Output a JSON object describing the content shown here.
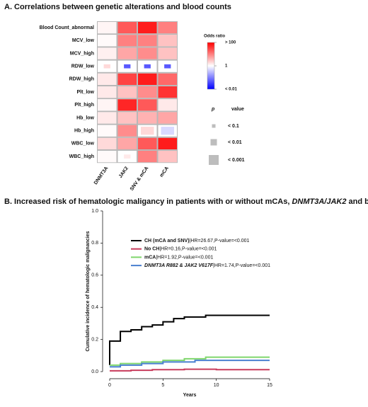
{
  "chart_data": [
    {
      "type": "heatmap",
      "title": "A. Correlations between genetic alterations and blood counts",
      "rows": [
        "Blood Count_abnormal",
        "MCV_low",
        "MCV_high",
        "RDW_low",
        "RDW_high",
        "Plt_low",
        "Plt_high",
        "Hb_low",
        "Hb_high",
        "WBC_low",
        "WBC_high"
      ],
      "columns": [
        "DNMT3A",
        "JAK2",
        "SNV & mCA",
        "mCA"
      ],
      "values": [
        [
          1.2,
          20,
          60,
          10
        ],
        [
          1.1,
          10,
          10,
          3
        ],
        [
          1.3,
          5,
          8,
          3
        ],
        [
          2,
          0.05,
          0.05,
          0.05
        ],
        [
          1.5,
          30,
          60,
          15
        ],
        [
          1.5,
          3,
          8,
          40
        ],
        [
          1.2,
          50,
          20,
          1.5
        ],
        [
          1.5,
          3,
          4,
          5
        ],
        [
          1.1,
          8,
          2,
          0.5
        ],
        [
          2,
          5,
          20,
          60
        ],
        [
          1.1,
          1.5,
          10,
          3
        ]
      ],
      "p_values": [
        [
          0.0001,
          0.0001,
          0.0001,
          0.0001
        ],
        [
          0.0001,
          0.0001,
          0.0001,
          0.0001
        ],
        [
          0.0001,
          0.0001,
          0.0001,
          0.0001
        ],
        [
          0.05,
          0.05,
          0.05,
          0.05
        ],
        [
          0.0001,
          0.0001,
          0.0001,
          0.0001
        ],
        [
          0.0001,
          0.0001,
          0.0001,
          0.0001
        ],
        [
          0.0001,
          0.0001,
          0.0001,
          0.0005
        ],
        [
          0.0001,
          0.0001,
          0.0001,
          0.0001
        ],
        [
          0.0001,
          0.0001,
          0.005,
          0.005
        ],
        [
          0.0001,
          0.0001,
          0.0001,
          0.0001
        ],
        [
          0.0001,
          0.05,
          0.0001,
          0.0001
        ]
      ],
      "colorbar_title": "Odds ratio",
      "log_scale": true,
      "color_high": "#ff0000",
      "color_mid": "#ffffff",
      "color_low": "#0000ff",
      "colorbar_ticks": [
        {
          "value": 100,
          "label": "> 100"
        },
        {
          "value": 1,
          "label": "1"
        },
        {
          "value": 0.01,
          "label": "< 0.01"
        }
      ],
      "size_legend_title": [
        "p",
        "value"
      ],
      "size_legend": [
        {
          "value": 0.1,
          "label": "< 0.1"
        },
        {
          "value": 0.01,
          "label": "< 0.01"
        },
        {
          "value": 0.001,
          "label": "< 0.001"
        }
      ]
    },
    {
      "type": "line",
      "title_parts": [
        {
          "text": "B.  Increased risk of hematologic maligancy in patients with or without mCAs, ",
          "italic": false
        },
        {
          "text": "DNMT3A/JAK2",
          "italic": true
        },
        {
          "text": " and both",
          "italic": false
        }
      ],
      "x_label": "Years",
      "y_label": "Cumulative incidence of hematologic malignancies",
      "xlim": [
        0,
        15
      ],
      "xticks": [
        0,
        5,
        10,
        15
      ],
      "ylim": [
        0,
        1
      ],
      "yticks": [
        {
          "value": 0,
          "label": "0.0"
        },
        {
          "value": 0.2,
          "label": "0.2"
        },
        {
          "value": 0.4,
          "label": "0.4"
        },
        {
          "value": 0.6,
          "label": "0.6"
        },
        {
          "value": 0.8,
          "label": "0.8"
        },
        {
          "value": 1,
          "label": "1.0"
        }
      ],
      "series": [
        {
          "name": "CH (mCA and SNV)",
          "annotation": "|HR=26.67,P-value=<0.001",
          "italic": false,
          "color": "#000000",
          "x": [
            0,
            0,
            1,
            1,
            2,
            2,
            3,
            3,
            4,
            4,
            5,
            5,
            6,
            6,
            7,
            7,
            9,
            9,
            15
          ],
          "values": [
            0.04,
            0.19,
            0.19,
            0.25,
            0.25,
            0.26,
            0.26,
            0.28,
            0.28,
            0.29,
            0.29,
            0.31,
            0.31,
            0.33,
            0.33,
            0.34,
            0.34,
            0.35,
            0.35
          ]
        },
        {
          "name": "No CH",
          "annotation": "|HR=0.16,P-value=<0.001",
          "italic": false,
          "color": "#c83c5c",
          "x": [
            0,
            2,
            2,
            4,
            4,
            7,
            7,
            10,
            10,
            15
          ],
          "values": [
            0.005,
            0.005,
            0.008,
            0.008,
            0.012,
            0.012,
            0.015,
            0.015,
            0.012,
            0.012
          ]
        },
        {
          "name": "mCA",
          "annotation": "|HR=1.92,P-value=<0.001",
          "italic": false,
          "color": "#7fd66c",
          "x": [
            0,
            1,
            1,
            3,
            3,
            5,
            5,
            7,
            7,
            9,
            9,
            15
          ],
          "values": [
            0.04,
            0.04,
            0.05,
            0.05,
            0.06,
            0.06,
            0.07,
            0.07,
            0.08,
            0.08,
            0.09,
            0.09
          ]
        },
        {
          "name": "DNMT3A R882 & JAK2 V617F",
          "annotation": "|HR=1.74,P-value=<0.001",
          "italic": true,
          "color": "#4a80d0",
          "x": [
            0,
            1,
            1,
            3,
            3,
            5,
            5,
            8,
            8,
            15
          ],
          "values": [
            0.03,
            0.03,
            0.04,
            0.04,
            0.05,
            0.05,
            0.06,
            0.06,
            0.07,
            0.07
          ]
        }
      ]
    }
  ]
}
